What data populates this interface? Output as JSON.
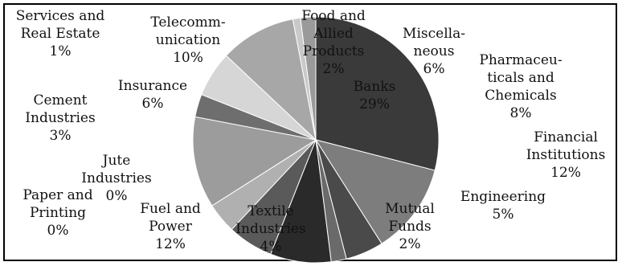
{
  "chart_data": {
    "type": "pie",
    "title": "",
    "slices": [
      {
        "label": "Banks",
        "value": 29,
        "value_label": "29%",
        "color": "#3a3a3a"
      },
      {
        "label": "Financial Institutions",
        "value": 12,
        "value_label": "12%",
        "color": "#7d7d7d"
      },
      {
        "label": "Engineering",
        "value": 5,
        "value_label": "5%",
        "color": "#4a4a4a"
      },
      {
        "label": "Mutual Funds",
        "value": 2,
        "value_label": "2%",
        "color": "#6a6a6a"
      },
      {
        "label": "Pharmaceuticals and Chemicals",
        "value": 8,
        "value_label": "8%",
        "color": "#2a2a2a"
      },
      {
        "label": "Miscellaneous",
        "value": 6,
        "value_label": "6%",
        "color": "#5a5a5a"
      },
      {
        "label": "Textile Industries",
        "value": 4,
        "value_label": "4%",
        "color": "#b0b0b0"
      },
      {
        "label": "Fuel and Power",
        "value": 12,
        "value_label": "12%",
        "color": "#9c9c9c"
      },
      {
        "label": "Paper and Printing",
        "value": 0,
        "value_label": "0%",
        "color": "#888888"
      },
      {
        "label": "Jute Industries",
        "value": 0,
        "value_label": "0%",
        "color": "#777777"
      },
      {
        "label": "Cement Industries",
        "value": 3,
        "value_label": "3%",
        "color": "#6e6e6e"
      },
      {
        "label": "Insurance",
        "value": 6,
        "value_label": "6%",
        "color": "#d6d6d6"
      },
      {
        "label": "Telecommunication",
        "value": 10,
        "value_label": "10%",
        "color": "#a7a7a7"
      },
      {
        "label": "Services and Real Estate",
        "value": 1,
        "value_label": "1%",
        "color": "#c9c9c9"
      },
      {
        "label": "Food and Allied Products",
        "value": 2,
        "value_label": "2%",
        "color": "#9a9a9a"
      }
    ],
    "label_lines": {
      "Banks": [
        "Banks",
        "29%"
      ],
      "Financial Institutions": [
        "Financial",
        "Institutions",
        "12%"
      ],
      "Engineering": [
        "Engineering",
        "5%"
      ],
      "Mutual Funds": [
        "Mutual",
        "Funds",
        "2%"
      ],
      "Pharmaceuticals and Chemicals": [
        "Pharmaceu-",
        "ticals and",
        "Chemicals",
        "8%"
      ],
      "Miscellaneous": [
        "Miscella-",
        "neous",
        "6%"
      ],
      "Textile Industries": [
        "Textile",
        "Industries",
        "4%"
      ],
      "Fuel and Power": [
        "Fuel and",
        "Power",
        "12%"
      ],
      "Paper and Printing": [
        "Paper and",
        "Printing",
        "0%"
      ],
      "Jute Industries": [
        "Jute",
        "Industries",
        "0%"
      ],
      "Cement Industries": [
        "Cement",
        "Industries",
        "3%"
      ],
      "Insurance": [
        "Insurance",
        "6%"
      ],
      "Telecommunication": [
        "Telecomm-",
        "unication",
        "10%"
      ],
      "Services and Real Estate": [
        "Services and",
        "Real Estate",
        "1%"
      ],
      "Food and Allied Products": [
        "Food and",
        "Allied",
        "Products",
        "2%"
      ]
    },
    "legend": "none"
  }
}
